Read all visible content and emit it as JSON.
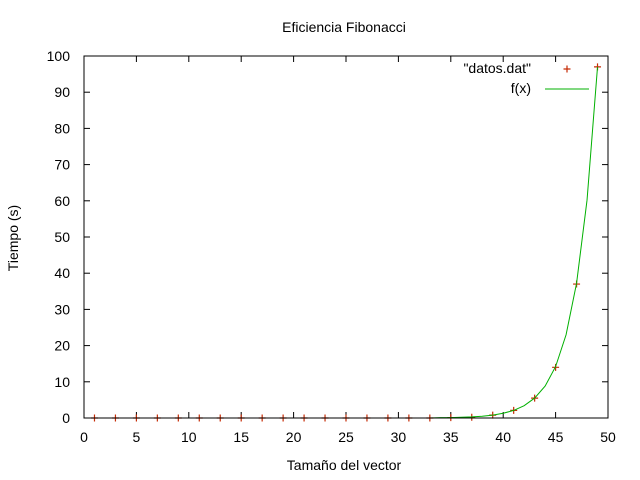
{
  "chart_data": {
    "type": "scatter",
    "title": "Eficiencia Fibonacci",
    "xlabel": "Tamaño del vector",
    "ylabel": "Tiempo (s)",
    "xlim": [
      0,
      50
    ],
    "ylim": [
      0,
      100
    ],
    "xticks": [
      0,
      5,
      10,
      15,
      20,
      25,
      30,
      35,
      40,
      45,
      50
    ],
    "yticks": [
      0,
      10,
      20,
      30,
      40,
      50,
      60,
      70,
      80,
      90,
      100
    ],
    "grid": false,
    "legend_position": "top-right",
    "series": [
      {
        "name": "\"datos.dat\"",
        "style": "points",
        "marker": "+",
        "color": "#c62b05",
        "x": [
          1,
          3,
          5,
          7,
          9,
          11,
          13,
          15,
          17,
          19,
          21,
          23,
          25,
          27,
          29,
          31,
          33,
          35,
          37,
          39,
          41,
          43,
          45,
          47,
          49
        ],
        "y": [
          0,
          0,
          0,
          0,
          0,
          0,
          0,
          0,
          0,
          0,
          0,
          0,
          0,
          0,
          0,
          0,
          0,
          0.1,
          0.2,
          0.8,
          2.1,
          5.5,
          14,
          37,
          97
        ]
      },
      {
        "name": "f(x)",
        "style": "line",
        "color": "#00b000",
        "x": [
          30,
          31,
          32,
          33,
          34,
          35,
          36,
          37,
          38,
          39,
          40,
          41,
          42,
          43,
          44,
          45,
          46,
          47,
          48,
          49
        ],
        "y": [
          0.0,
          0.0,
          0.0,
          0.0,
          0.1,
          0.1,
          0.2,
          0.3,
          0.5,
          0.8,
          1.3,
          2.1,
          3.4,
          5.5,
          8.8,
          14.2,
          23.0,
          37.2,
          60.2,
          97.0
        ]
      }
    ]
  }
}
